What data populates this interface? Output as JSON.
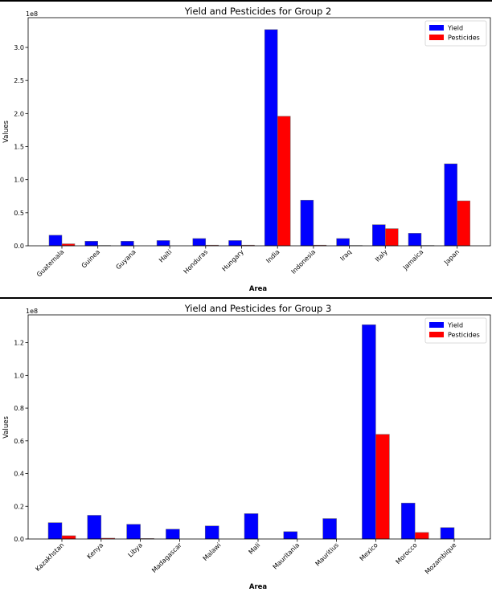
{
  "chart_data": [
    {
      "type": "bar",
      "title": "Yield and Pesticides for Group 2",
      "xlabel": "Area",
      "ylabel": "Values",
      "offset_label": "1e8",
      "legend_position": "top-right",
      "ylim": [
        0,
        3.45
      ],
      "yticks": [
        "0.0",
        "0.5",
        "1.0",
        "1.5",
        "2.0",
        "2.5",
        "3.0"
      ],
      "categories": [
        "Guatemala",
        "Guinea",
        "Guyana",
        "Haiti",
        "Honduras",
        "Hungary",
        "India",
        "Indonesia",
        "Iraq",
        "Italy",
        "Jamaica",
        "Japan"
      ],
      "series": [
        {
          "name": "Yield",
          "color": "#0000ff",
          "values": [
            0.16,
            0.07,
            0.07,
            0.08,
            0.11,
            0.08,
            3.27,
            0.69,
            0.11,
            0.32,
            0.19,
            1.24
          ]
        },
        {
          "name": "Pesticides",
          "color": "#ff0000",
          "values": [
            0.03,
            0.005,
            0.0,
            0.0,
            0.01,
            0.01,
            1.96,
            0.01,
            0.005,
            0.26,
            0.005,
            0.68
          ]
        }
      ]
    },
    {
      "type": "bar",
      "title": "Yield and Pesticides for Group 3",
      "xlabel": "Area",
      "ylabel": "Values",
      "offset_label": "1e8",
      "legend_position": "top-right",
      "ylim": [
        0,
        1.37
      ],
      "yticks": [
        "0.0",
        "0.2",
        "0.4",
        "0.6",
        "0.8",
        "1.0",
        "1.2"
      ],
      "categories": [
        "Kazakhstan",
        "Kenya",
        "Libya",
        "Madagascar",
        "Malawi",
        "Mali",
        "Mauritania",
        "Mauritius",
        "Mexico",
        "Morocco",
        "Mozambique"
      ],
      "series": [
        {
          "name": "Yield",
          "color": "#0000ff",
          "values": [
            0.1,
            0.145,
            0.09,
            0.06,
            0.08,
            0.155,
            0.045,
            0.125,
            1.31,
            0.22,
            0.07
          ]
        },
        {
          "name": "Pesticides",
          "color": "#ff0000",
          "values": [
            0.02,
            0.005,
            0.003,
            0.0,
            0.0,
            0.0,
            0.0,
            0.0,
            0.64,
            0.04,
            0.0
          ]
        }
      ]
    }
  ]
}
